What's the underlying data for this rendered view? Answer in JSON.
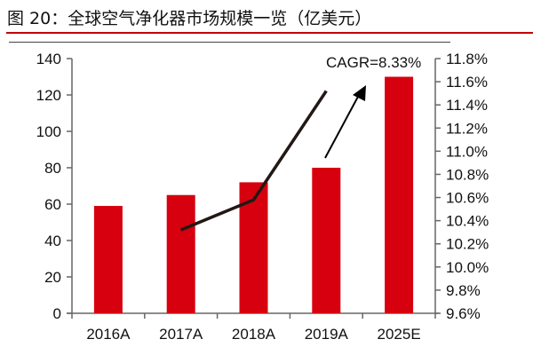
{
  "title": "图 20：全球空气净化器市场规模一览（亿美元）",
  "chart_data": {
    "type": "bar",
    "title": "图 20：全球空气净化器市场规模一览（亿美元）",
    "categories": [
      "2016A",
      "2017A",
      "2018A",
      "2019A",
      "2025E"
    ],
    "series": [
      {
        "type": "bar",
        "axis": "left",
        "values": [
          59,
          65,
          72,
          80,
          130
        ],
        "color": "#d7000f"
      },
      {
        "type": "line",
        "axis": "right",
        "x": [
          "2017A",
          "2018A",
          "2019A"
        ],
        "values": [
          10.32,
          10.58,
          11.52
        ],
        "color": "#231815"
      }
    ],
    "ylim_left": [
      0,
      140
    ],
    "yticks_left": [
      "0",
      "20",
      "40",
      "60",
      "80",
      "100",
      "120",
      "140"
    ],
    "ylim_right": [
      9.6,
      11.8
    ],
    "yticks_right": [
      "9.6%",
      "9.8%",
      "10.0%",
      "10.2%",
      "10.4%",
      "10.6%",
      "10.8%",
      "11.0%",
      "11.2%",
      "11.4%",
      "11.6%",
      "11.8%"
    ],
    "annotation": "CAGR=8.33%",
    "grid": false,
    "legend": "none"
  }
}
